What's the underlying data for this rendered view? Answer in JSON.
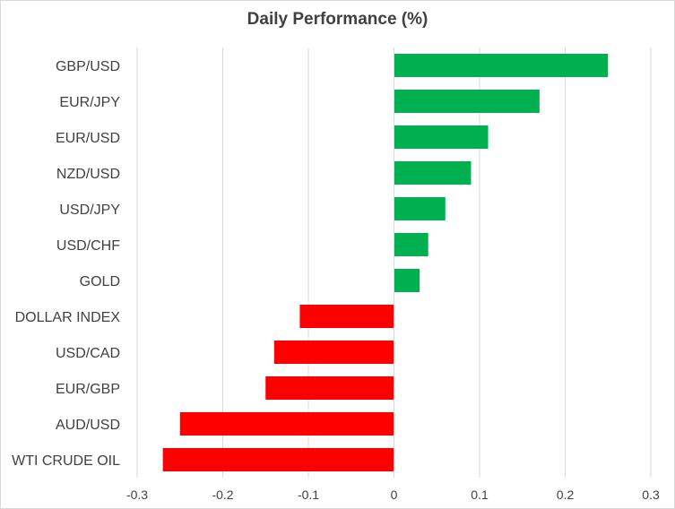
{
  "chart_data": {
    "type": "bar",
    "orientation": "horizontal",
    "title": "Daily Performance (%)",
    "xlabel": "",
    "ylabel": "",
    "categories": [
      "GBP/USD",
      "EUR/JPY",
      "EUR/USD",
      "NZD/USD",
      "USD/JPY",
      "USD/CHF",
      "GOLD",
      "DOLLAR INDEX",
      "USD/CAD",
      "EUR/GBP",
      "AUD/USD",
      "WTI CRUDE OIL"
    ],
    "values": [
      0.25,
      0.17,
      0.11,
      0.09,
      0.06,
      0.04,
      0.03,
      -0.11,
      -0.14,
      -0.15,
      -0.25,
      -0.27
    ],
    "xlim": [
      -0.3,
      0.3
    ],
    "ticks": [
      -0.3,
      -0.2,
      -0.1,
      0,
      0.1,
      0.2,
      0.3
    ],
    "tick_labels": [
      "-0.3",
      "-0.2",
      "-0.1",
      "0",
      "0.1",
      "0.2",
      "0.3"
    ],
    "grid": "vertical",
    "legend": "none",
    "colors": {
      "positive": "#00b050",
      "negative": "#ff0000",
      "grid": "#d9d9d9",
      "text": "#404040"
    }
  }
}
